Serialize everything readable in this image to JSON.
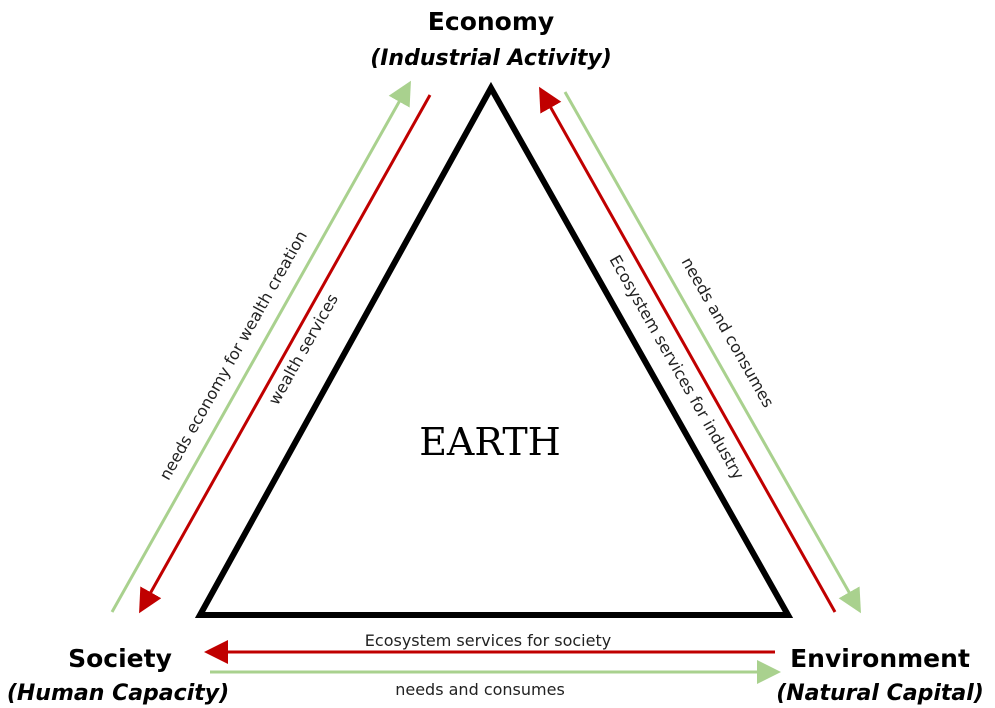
{
  "nodes": [
    {
      "name": "Economy",
      "subtitle": "(Industrial Activity)"
    },
    {
      "name": "Society",
      "subtitle": "(Human Capacity)"
    },
    {
      "name": "Environment",
      "subtitle": "(Natural Capital)"
    }
  ],
  "center": "EARTH",
  "arrows": [
    {
      "label": "needs economy for wealth creation"
    },
    {
      "label": "wealth services"
    },
    {
      "label": "Ecosystem services for industry"
    },
    {
      "label": "needs and consumes"
    },
    {
      "label": "Ecosystem services for society"
    },
    {
      "label": "needs and consumes"
    }
  ]
}
